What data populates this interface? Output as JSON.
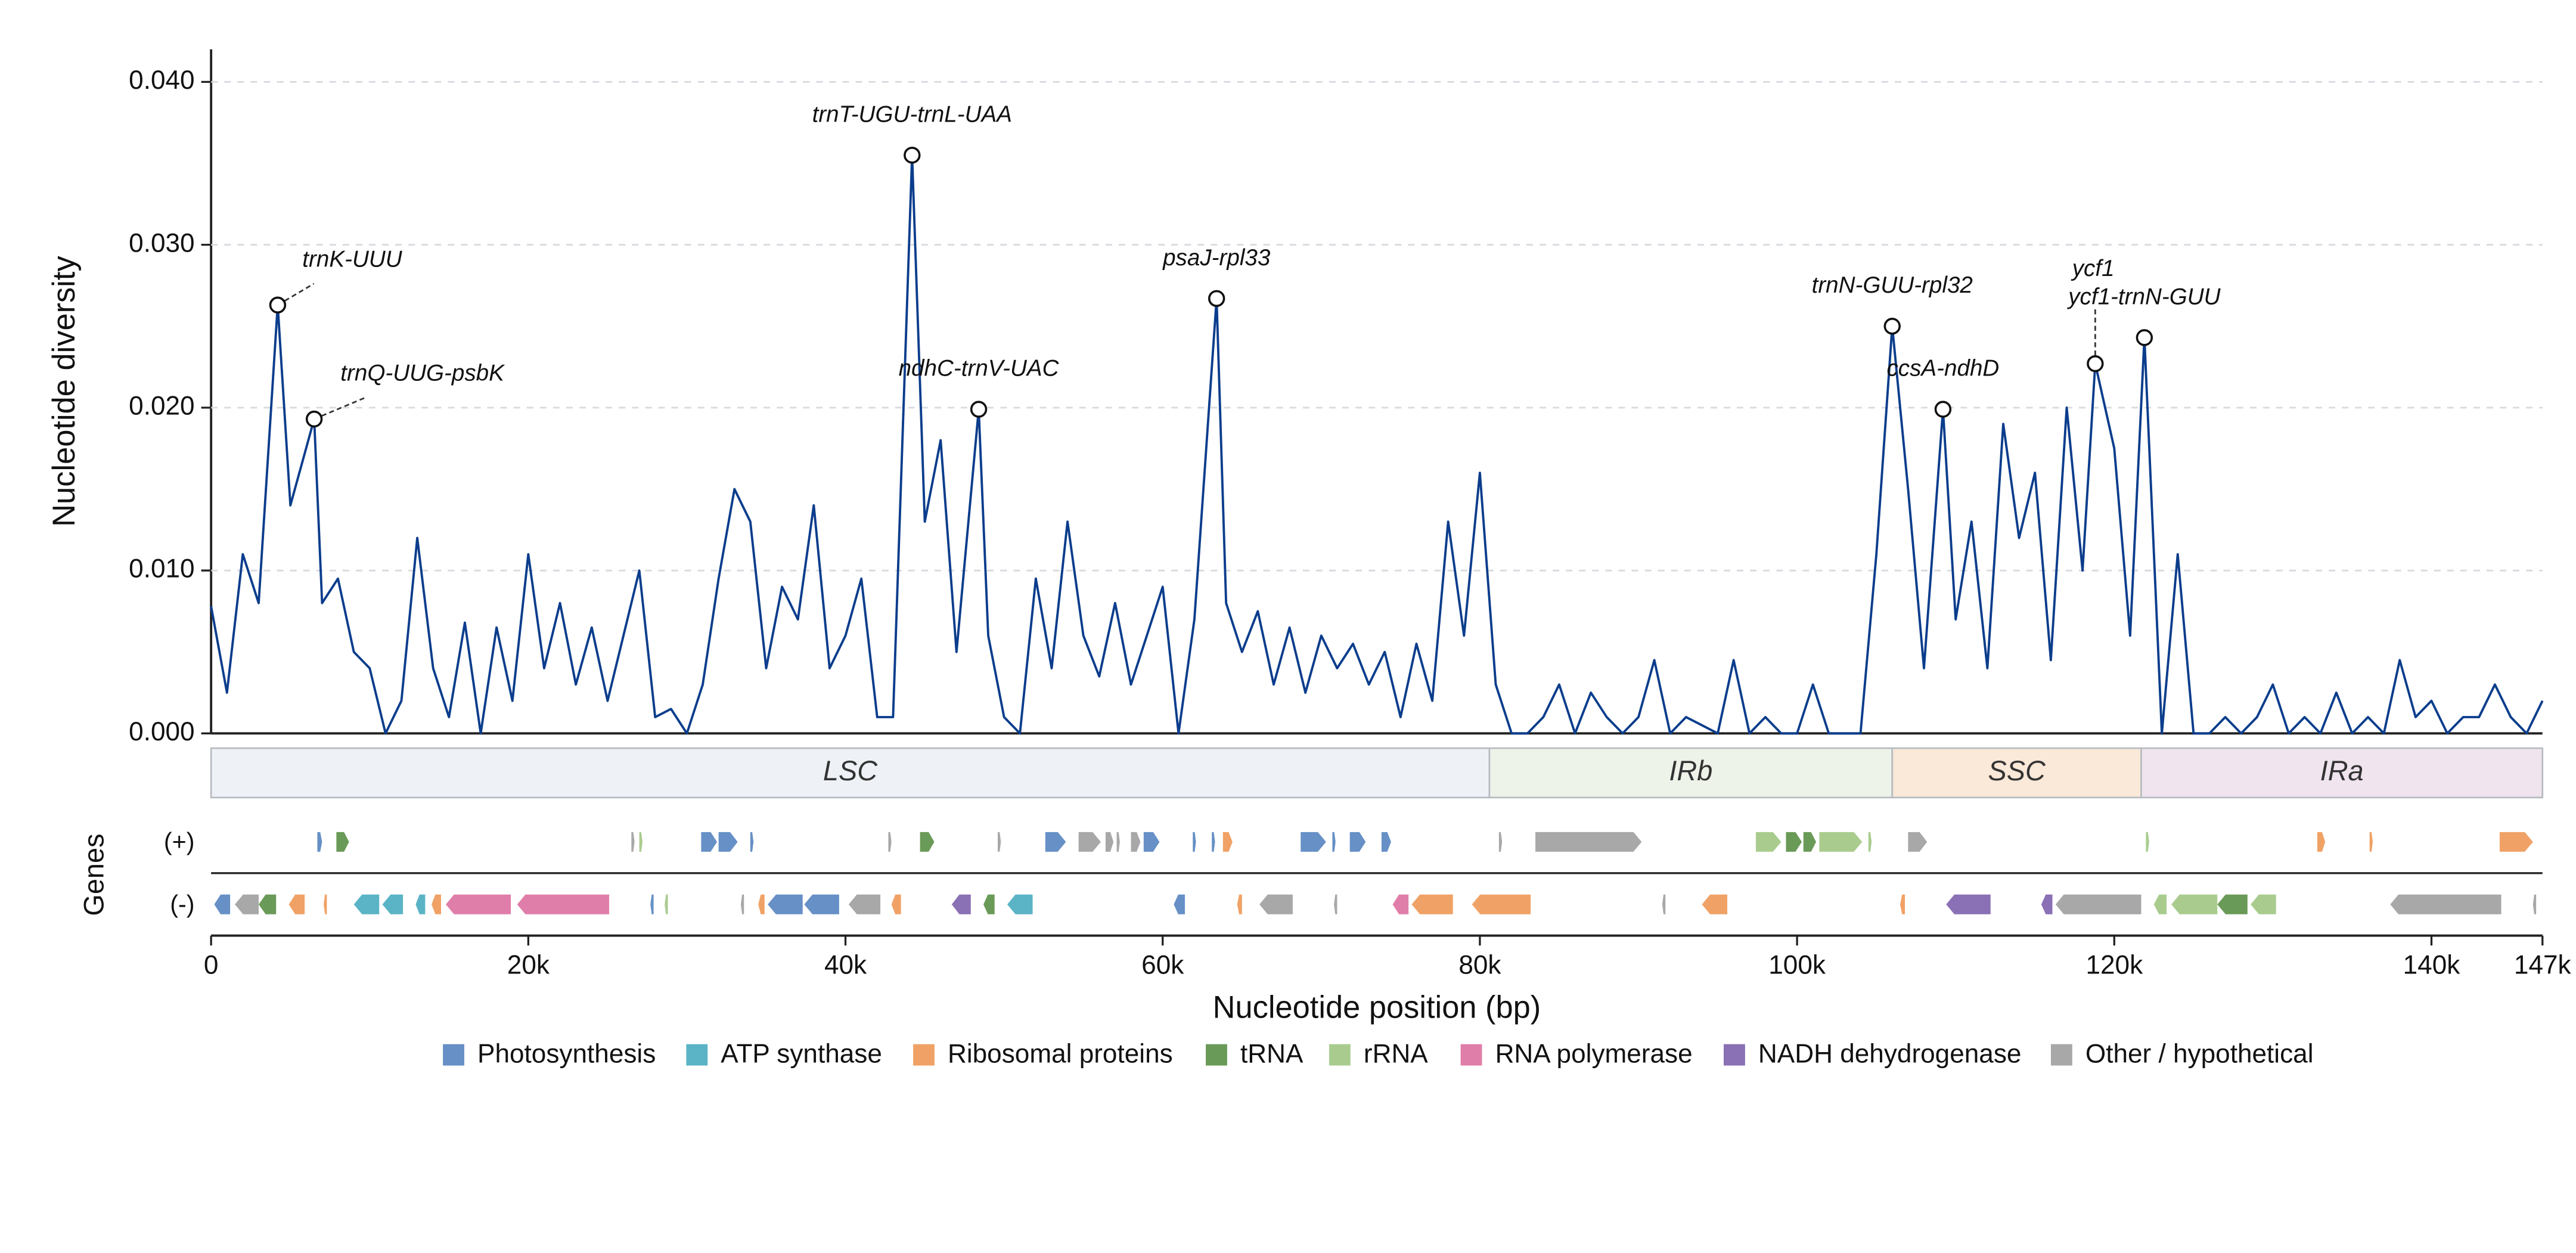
{
  "chart_data": {
    "type": "line",
    "y_label": "Nucleotide diversity",
    "x_label": "Nucleotide position (bp)",
    "xlim": [
      0,
      147000
    ],
    "ylim": [
      0,
      0.042
    ],
    "yticks": [
      {
        "value": 0,
        "label": "0.000"
      },
      {
        "value": 0.01,
        "label": "0.010"
      },
      {
        "value": 0.02,
        "label": "0.020"
      },
      {
        "value": 0.03,
        "label": "0.030"
      },
      {
        "value": 0.04,
        "label": "0.040"
      }
    ],
    "xticks": [
      0,
      {
        "value": 20000,
        "label": "20k"
      },
      {
        "value": 40000,
        "label": "40k"
      },
      {
        "value": 60000,
        "label": "60k"
      },
      {
        "value": 80000,
        "label": "80k"
      },
      {
        "value": 100000,
        "label": "100k"
      },
      {
        "value": 120000,
        "label": "120k"
      },
      {
        "value": 140000,
        "label": "140k"
      },
      {
        "value": 147000,
        "label": "147k"
      }
    ],
    "grid": true,
    "series": [
      {
        "color": "#0b3d8c",
        "x": [
          0,
          1000,
          2000,
          3000,
          4200,
          5000,
          6500,
          7000,
          8000,
          9000,
          10000,
          11000,
          12000,
          13000,
          14000,
          15000,
          16000,
          17000,
          18000,
          19000,
          20000,
          21000,
          22000,
          23000,
          24000,
          25000,
          26000,
          27000,
          28000,
          29000,
          30000,
          31000,
          32000,
          33000,
          34000,
          35000,
          36000,
          37000,
          38000,
          39000,
          40000,
          41000,
          42000,
          43000,
          44200,
          45000,
          46000,
          47000,
          48400,
          49000,
          50000,
          51000,
          52000,
          53000,
          54000,
          55000,
          56000,
          57000,
          58000,
          59000,
          60000,
          61000,
          62000,
          63400,
          64000,
          65000,
          66000,
          67000,
          68000,
          69000,
          70000,
          71000,
          72000,
          73000,
          74000,
          75000,
          76000,
          77000,
          78000,
          79000,
          80000,
          81000,
          82000,
          83000,
          84000,
          85000,
          86000,
          87000,
          88000,
          89000,
          90000,
          91000,
          92000,
          93000,
          94000,
          95000,
          96000,
          97000,
          98000,
          99000,
          100000,
          101000,
          102000,
          103000,
          104000,
          105000,
          106000,
          107000,
          108000,
          109200,
          110000,
          111000,
          112000,
          113000,
          114000,
          115000,
          116000,
          117000,
          118000,
          118800,
          120000,
          121000,
          121900,
          123000,
          124000,
          125000,
          126000,
          127000,
          128000,
          129000,
          130000,
          131000,
          132000,
          133000,
          134000,
          135000,
          136000,
          137000,
          138000,
          139000,
          140000,
          141000,
          142000,
          143000,
          144000,
          145000,
          146000,
          147000
        ],
        "values": [
          0.0078,
          0.0025,
          0.011,
          0.008,
          0.0263,
          0.014,
          0.0193,
          0.008,
          0.0095,
          0.005,
          0.004,
          0.0,
          0.002,
          0.012,
          0.004,
          0.001,
          0.0068,
          0.0,
          0.0065,
          0.002,
          0.011,
          0.004,
          0.008,
          0.003,
          0.0065,
          0.002,
          0.006,
          0.01,
          0.001,
          0.0015,
          0.0,
          0.003,
          0.0095,
          0.015,
          0.013,
          0.004,
          0.009,
          0.007,
          0.014,
          0.004,
          0.006,
          0.0095,
          0.001,
          0.001,
          0.0355,
          0.013,
          0.018,
          0.005,
          0.0199,
          0.006,
          0.001,
          0.0,
          0.0095,
          0.004,
          0.013,
          0.006,
          0.0035,
          0.008,
          0.003,
          0.006,
          0.009,
          0.0,
          0.007,
          0.0267,
          0.008,
          0.005,
          0.0075,
          0.003,
          0.0065,
          0.0025,
          0.006,
          0.004,
          0.0055,
          0.003,
          0.005,
          0.001,
          0.0055,
          0.002,
          0.013,
          0.006,
          0.016,
          0.003,
          0.0,
          0.0,
          0.001,
          0.003,
          0.0,
          0.0025,
          0.001,
          0.0,
          0.001,
          0.0045,
          0.0,
          0.001,
          0.0005,
          0.0,
          0.0045,
          0.0,
          0.001,
          0.0,
          0.0,
          0.003,
          0.0,
          0.0,
          0.0,
          0.011,
          0.025,
          0.015,
          0.004,
          0.0199,
          0.007,
          0.013,
          0.004,
          0.019,
          0.012,
          0.016,
          0.0045,
          0.02,
          0.01,
          0.0227,
          0.0175,
          0.006,
          0.0243,
          0.0,
          0.011,
          0.0,
          0.0,
          0.001,
          0.0,
          0.001,
          0.003,
          0.0,
          0.001,
          0.0,
          0.0025,
          0.0,
          0.001,
          0.0,
          0.0045,
          0.001,
          0.002,
          0.0,
          0.001,
          0.001,
          0.003,
          0.001,
          0.0,
          0.002
        ]
      }
    ],
    "annotations": [
      {
        "text": "trnK-UUU",
        "x": 4200,
        "y": 0.0263
      },
      {
        "text": "trnQ-UUG-psbK",
        "x": 6500,
        "y": 0.0193
      },
      {
        "text": "trnT-UGU-trnL-UAA",
        "x": 44200,
        "y": 0.0355
      },
      {
        "text": "ndhC-trnV-UAC",
        "x": 48400,
        "y": 0.0199
      },
      {
        "text": "psaJ-rpl33",
        "x": 63400,
        "y": 0.0267
      },
      {
        "text": "trnN-GUU-rpl32",
        "x": 106000,
        "y": 0.025
      },
      {
        "text": "ccsA-ndhD",
        "x": 109200,
        "y": 0.0199
      },
      {
        "text": "ycf1",
        "x": 118800,
        "y": 0.0227
      },
      {
        "text": "ycf1-trnN-GUU",
        "x": 121900,
        "y": 0.0243
      }
    ],
    "regions": [
      {
        "name": "LSC",
        "start": 0,
        "end": 80600,
        "color": "#eef2f6"
      },
      {
        "name": "IRb",
        "start": 80600,
        "end": 106000,
        "color": "#eef3ea"
      },
      {
        "name": "SSC",
        "start": 106000,
        "end": 121700,
        "color": "#fae8d8"
      },
      {
        "name": "IRa",
        "start": 121700,
        "end": 147000,
        "color": "#f0e4ef"
      }
    ],
    "genes": {
      "label": "Genes",
      "plus_label": "(+)",
      "minus_label": "(-)",
      "plus": [
        {
          "start": 6700,
          "end": 7000,
          "category": "Photosynthesis"
        },
        {
          "start": 7900,
          "end": 8700,
          "category": "tRNA"
        },
        {
          "start": 26500,
          "end": 26700,
          "category": "Other / hypothetical"
        },
        {
          "start": 27000,
          "end": 27200,
          "category": "rRNA"
        },
        {
          "start": 30900,
          "end": 31900,
          "category": "Photosynthesis"
        },
        {
          "start": 32000,
          "end": 33200,
          "category": "Photosynthesis"
        },
        {
          "start": 34000,
          "end": 34200,
          "category": "Photosynthesis"
        },
        {
          "start": 42700,
          "end": 42900,
          "category": "Other / hypothetical"
        },
        {
          "start": 44700,
          "end": 45600,
          "category": "tRNA"
        },
        {
          "start": 49600,
          "end": 49800,
          "category": "Other / hypothetical"
        },
        {
          "start": 52600,
          "end": 53900,
          "category": "Photosynthesis"
        },
        {
          "start": 54700,
          "end": 56100,
          "category": "Other / hypothetical"
        },
        {
          "start": 56400,
          "end": 56900,
          "category": "Other / hypothetical"
        },
        {
          "start": 57100,
          "end": 57300,
          "category": "Other / hypothetical"
        },
        {
          "start": 58000,
          "end": 58600,
          "category": "Other / hypothetical"
        },
        {
          "start": 58800,
          "end": 59800,
          "category": "Photosynthesis"
        },
        {
          "start": 61900,
          "end": 62100,
          "category": "Photosynthesis"
        },
        {
          "start": 63100,
          "end": 63300,
          "category": "Photosynthesis"
        },
        {
          "start": 63800,
          "end": 64400,
          "category": "Ribosomal proteins"
        },
        {
          "start": 68700,
          "end": 70300,
          "category": "Photosynthesis"
        },
        {
          "start": 70700,
          "end": 70900,
          "category": "Photosynthesis"
        },
        {
          "start": 71800,
          "end": 72800,
          "category": "Photosynthesis"
        },
        {
          "start": 73800,
          "end": 74400,
          "category": "Photosynthesis"
        },
        {
          "start": 81200,
          "end": 81400,
          "category": "Other / hypothetical"
        },
        {
          "start": 83500,
          "end": 90200,
          "category": "Other / hypothetical"
        },
        {
          "start": 97400,
          "end": 99000,
          "category": "rRNA"
        },
        {
          "start": 99300,
          "end": 100300,
          "category": "tRNA"
        },
        {
          "start": 100400,
          "end": 101200,
          "category": "tRNA"
        },
        {
          "start": 101400,
          "end": 104100,
          "category": "rRNA"
        },
        {
          "start": 104500,
          "end": 104700,
          "category": "rRNA"
        },
        {
          "start": 107000,
          "end": 108200,
          "category": "Other / hypothetical"
        },
        {
          "start": 122000,
          "end": 122200,
          "category": "rRNA"
        },
        {
          "start": 132800,
          "end": 133300,
          "category": "Ribosomal proteins"
        },
        {
          "start": 136100,
          "end": 136300,
          "category": "Ribosomal proteins"
        },
        {
          "start": 144300,
          "end": 146400,
          "category": "Ribosomal proteins"
        }
      ],
      "minus": [
        {
          "start": 200,
          "end": 1200,
          "category": "Photosynthesis"
        },
        {
          "start": 1500,
          "end": 3000,
          "category": "Other / hypothetical"
        },
        {
          "start": 3000,
          "end": 4100,
          "category": "tRNA"
        },
        {
          "start": 4900,
          "end": 5900,
          "category": "Ribosomal proteins"
        },
        {
          "start": 7100,
          "end": 7300,
          "category": "Ribosomal proteins"
        },
        {
          "start": 9000,
          "end": 10600,
          "category": "ATP synthase"
        },
        {
          "start": 10800,
          "end": 12100,
          "category": "ATP synthase"
        },
        {
          "start": 12900,
          "end": 13500,
          "category": "ATP synthase"
        },
        {
          "start": 13900,
          "end": 14500,
          "category": "Ribosomal proteins"
        },
        {
          "start": 14800,
          "end": 18900,
          "category": "RNA polymerase"
        },
        {
          "start": 19300,
          "end": 25100,
          "category": "RNA polymerase"
        },
        {
          "start": 27700,
          "end": 27900,
          "category": "Photosynthesis"
        },
        {
          "start": 28600,
          "end": 28800,
          "category": "rRNA"
        },
        {
          "start": 33400,
          "end": 33600,
          "category": "Other / hypothetical"
        },
        {
          "start": 34500,
          "end": 34900,
          "category": "Ribosomal proteins"
        },
        {
          "start": 35100,
          "end": 37300,
          "category": "Photosynthesis"
        },
        {
          "start": 37400,
          "end": 39600,
          "category": "Photosynthesis"
        },
        {
          "start": 40200,
          "end": 42200,
          "category": "Other / hypothetical"
        },
        {
          "start": 42900,
          "end": 43500,
          "category": "Ribosomal proteins"
        },
        {
          "start": 46700,
          "end": 47900,
          "category": "NADH dehydrogenase"
        },
        {
          "start": 48700,
          "end": 49400,
          "category": "tRNA"
        },
        {
          "start": 50200,
          "end": 51800,
          "category": "ATP synthase"
        },
        {
          "start": 60700,
          "end": 61400,
          "category": "Photosynthesis"
        },
        {
          "start": 64700,
          "end": 65000,
          "category": "Ribosomal proteins"
        },
        {
          "start": 66100,
          "end": 68200,
          "category": "Other / hypothetical"
        },
        {
          "start": 70800,
          "end": 71000,
          "category": "Other / hypothetical"
        },
        {
          "start": 74500,
          "end": 75500,
          "category": "RNA polymerase"
        },
        {
          "start": 75700,
          "end": 78300,
          "category": "Ribosomal proteins"
        },
        {
          "start": 79500,
          "end": 83200,
          "category": "Ribosomal proteins"
        },
        {
          "start": 91500,
          "end": 91700,
          "category": "Other / hypothetical"
        },
        {
          "start": 94000,
          "end": 95600,
          "category": "Ribosomal proteins"
        },
        {
          "start": 106500,
          "end": 106800,
          "category": "Ribosomal proteins"
        },
        {
          "start": 109400,
          "end": 112200,
          "category": "NADH dehydrogenase"
        },
        {
          "start": 115400,
          "end": 116100,
          "category": "NADH dehydrogenase"
        },
        {
          "start": 116300,
          "end": 121700,
          "category": "Other / hypothetical"
        },
        {
          "start": 122500,
          "end": 123300,
          "category": "rRNA"
        },
        {
          "start": 123600,
          "end": 126500,
          "category": "rRNA"
        },
        {
          "start": 126500,
          "end": 128400,
          "category": "tRNA"
        },
        {
          "start": 128600,
          "end": 130200,
          "category": "rRNA"
        },
        {
          "start": 137400,
          "end": 144400,
          "category": "Other / hypothetical"
        },
        {
          "start": 146400,
          "end": 146600,
          "category": "Other / hypothetical"
        }
      ]
    },
    "legend": [
      {
        "name": "Photosynthesis",
        "color": "#6690c6"
      },
      {
        "name": "ATP synthase",
        "color": "#5ab4c6"
      },
      {
        "name": "Ribosomal proteins",
        "color": "#f0a266"
      },
      {
        "name": "tRNA",
        "color": "#6a9a58"
      },
      {
        "name": "rRNA",
        "color": "#a9cc8e"
      },
      {
        "name": "RNA polymerase",
        "color": "#e07eaa"
      },
      {
        "name": "NADH dehydrogenase",
        "color": "#8a70b4"
      },
      {
        "name": "Other / hypothetical",
        "color": "#a8a8a8"
      }
    ]
  }
}
